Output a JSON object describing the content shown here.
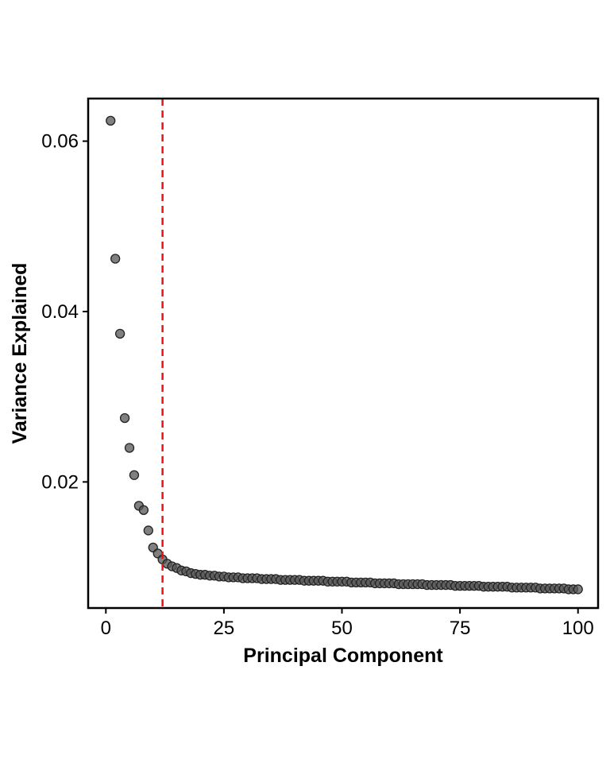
{
  "chart_data": {
    "type": "scatter",
    "title": "",
    "xlabel": "Principal Component",
    "ylabel": "Variance Explained",
    "xlim": [
      -3.75,
      104.25
    ],
    "ylim": [
      0.0052,
      0.065
    ],
    "x_ticks": [
      0,
      25,
      50,
      75,
      100
    ],
    "y_ticks": [
      0.02,
      0.04,
      0.06
    ],
    "x_tick_labels": [
      "0",
      "25",
      "50",
      "75",
      "100"
    ],
    "y_tick_labels": [
      "0.02",
      "0.04",
      "0.06"
    ],
    "grid": false,
    "legend": "none",
    "point_color": "#555555",
    "point_stroke": "#222222",
    "cutoff_line": {
      "x": 12,
      "color": "#ee1111",
      "style": "dashed"
    },
    "series": [
      {
        "x": [
          1,
          2,
          3,
          4,
          5,
          6,
          7,
          8,
          9,
          10,
          11,
          12,
          13,
          14,
          15,
          16,
          17,
          18,
          19,
          20,
          21,
          22,
          23,
          24,
          25,
          26,
          27,
          28,
          29,
          30,
          31,
          32,
          33,
          34,
          35,
          36,
          37,
          38,
          39,
          40,
          41,
          42,
          43,
          44,
          45,
          46,
          47,
          48,
          49,
          50,
          51,
          52,
          53,
          54,
          55,
          56,
          57,
          58,
          59,
          60,
          61,
          62,
          63,
          64,
          65,
          66,
          67,
          68,
          69,
          70,
          71,
          72,
          73,
          74,
          75,
          76,
          77,
          78,
          79,
          80,
          81,
          82,
          83,
          84,
          85,
          86,
          87,
          88,
          89,
          90,
          91,
          92,
          93,
          94,
          95,
          96,
          97,
          98,
          99,
          100
        ],
        "y": [
          0.0624,
          0.0462,
          0.0374,
          0.0275,
          0.024,
          0.0208,
          0.0172,
          0.0167,
          0.0143,
          0.0123,
          0.0116,
          0.0109,
          0.0104,
          0.0101,
          0.0099,
          0.0096,
          0.0095,
          0.0093,
          0.0092,
          0.0091,
          0.0091,
          0.009,
          0.009,
          0.0089,
          0.0089,
          0.0088,
          0.0088,
          0.0088,
          0.0087,
          0.0087,
          0.0087,
          0.0087,
          0.0086,
          0.0086,
          0.0086,
          0.0086,
          0.0085,
          0.0085,
          0.0085,
          0.0085,
          0.0085,
          0.0084,
          0.0084,
          0.0084,
          0.0084,
          0.0084,
          0.0083,
          0.0083,
          0.0083,
          0.0083,
          0.0083,
          0.0082,
          0.0082,
          0.0082,
          0.0082,
          0.0082,
          0.0081,
          0.0081,
          0.0081,
          0.0081,
          0.0081,
          0.008,
          0.008,
          0.008,
          0.008,
          0.008,
          0.008,
          0.0079,
          0.0079,
          0.0079,
          0.0079,
          0.0079,
          0.0079,
          0.0078,
          0.0078,
          0.0078,
          0.0078,
          0.0078,
          0.0078,
          0.0077,
          0.0077,
          0.0077,
          0.0077,
          0.0077,
          0.0077,
          0.0076,
          0.0076,
          0.0076,
          0.0076,
          0.0076,
          0.0076,
          0.0075,
          0.0075,
          0.0075,
          0.0075,
          0.0075,
          0.0075,
          0.0074,
          0.0074,
          0.0074
        ]
      }
    ]
  }
}
